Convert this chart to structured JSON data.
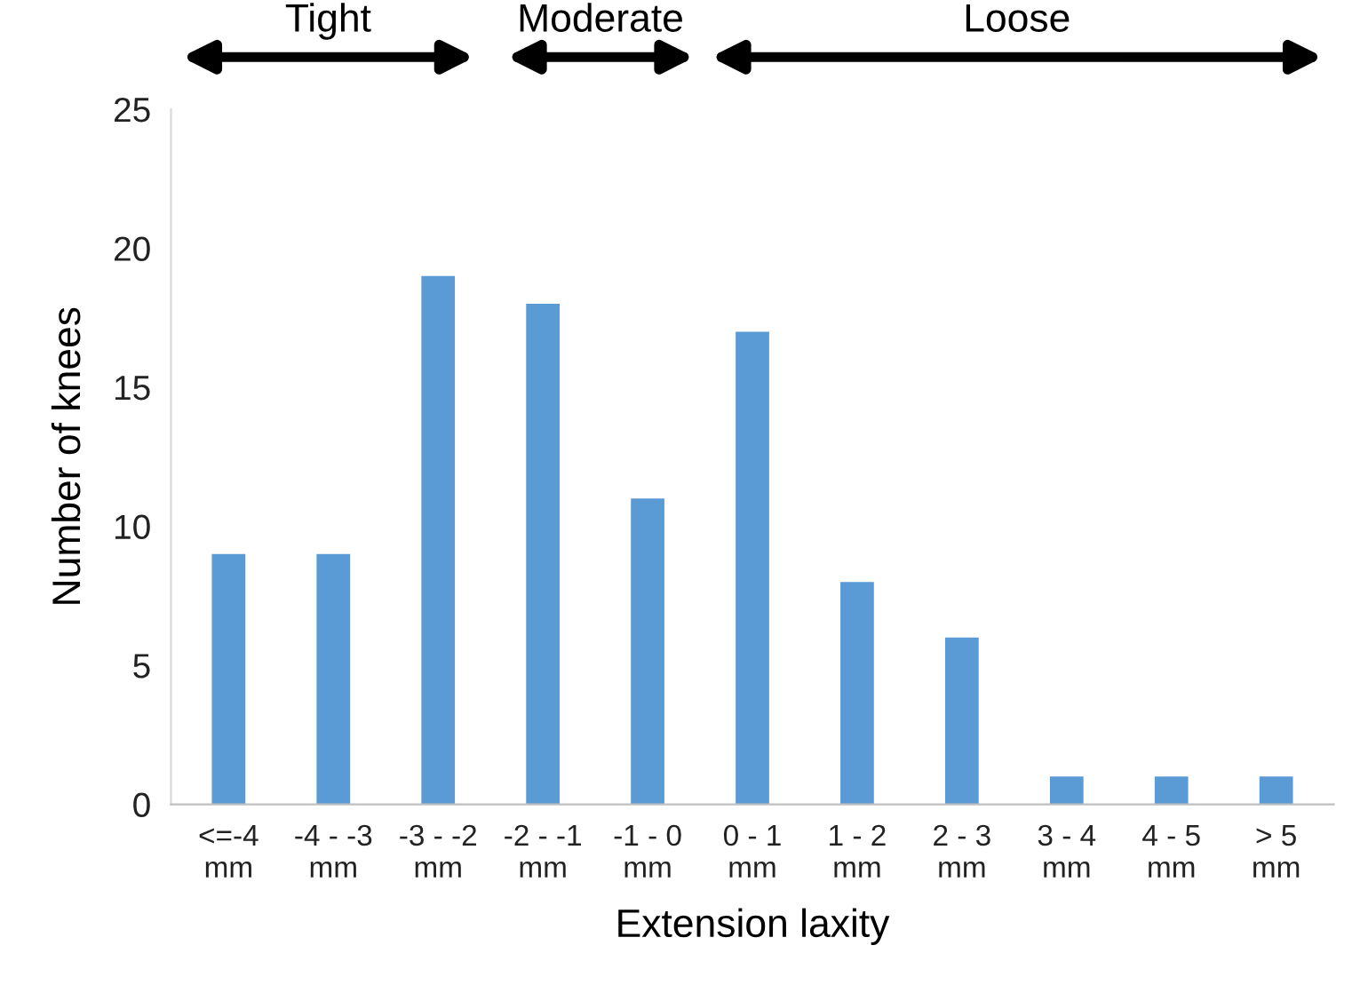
{
  "chart_data": {
    "type": "bar",
    "xlabel": "Extension laxity",
    "ylabel": "Number of knees",
    "categories": [
      "<=-4\nmm",
      "-4 - -3\nmm",
      "-3 - -2\nmm",
      "-2 - -1\nmm",
      "-1 - 0\nmm",
      "0 - 1\nmm",
      "1 - 2\nmm",
      "2 - 3\nmm",
      "3 - 4\nmm",
      "4 - 5\nmm",
      "> 5\nmm"
    ],
    "values": [
      9,
      9,
      19,
      18,
      11,
      17,
      8,
      6,
      1,
      1,
      1
    ],
    "color": "#5b9bd5",
    "ylim": [
      0,
      25
    ],
    "yticks": [
      0,
      5,
      10,
      15,
      20,
      25
    ],
    "grid": false,
    "legend": false,
    "annotations": [
      "Tight",
      "Moderate",
      "Loose"
    ]
  }
}
